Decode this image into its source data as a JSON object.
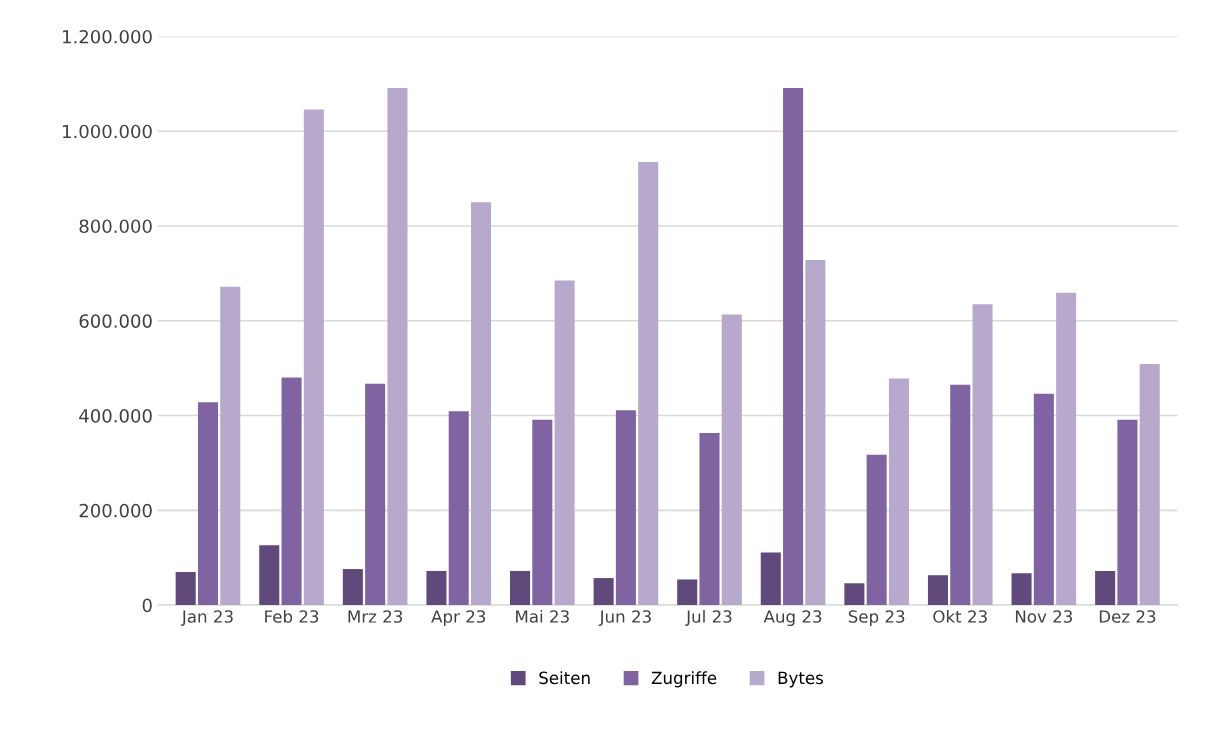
{
  "chart_data": {
    "type": "bar",
    "categories": [
      "Jan 23",
      "Feb 23",
      "Mrz 23",
      "Apr 23",
      "Mai 23",
      "Jun 23",
      "Jul 23",
      "Aug 23",
      "Sep 23",
      "Okt 23",
      "Nov 23",
      "Dez 23"
    ],
    "series": [
      {
        "name": "Seiten",
        "color": "#604a7b",
        "values": [
          70000,
          126000,
          76000,
          72000,
          72000,
          57000,
          54000,
          111000,
          46000,
          63000,
          67000,
          72000
        ]
      },
      {
        "name": "Zugriffe",
        "color": "#8064a2",
        "values": [
          428000,
          480000,
          467000,
          409000,
          391000,
          411000,
          363000,
          1091000,
          317000,
          465000,
          446000,
          391000
        ]
      },
      {
        "name": "Bytes",
        "color": "#b7a9cc",
        "values": [
          672000,
          1046000,
          1091000,
          850000,
          685000,
          935000,
          613000,
          728000,
          478000,
          635000,
          659000,
          509000
        ]
      }
    ],
    "ylim": [
      0,
      1200000
    ],
    "yticks": [
      {
        "value": 0,
        "label": "0"
      },
      {
        "value": 200000,
        "label": "200.000"
      },
      {
        "value": 400000,
        "label": "400.000"
      },
      {
        "value": 600000,
        "label": "600.000"
      },
      {
        "value": 800000,
        "label": "800.000"
      },
      {
        "value": 1000000,
        "label": "1.000.000"
      },
      {
        "value": 1200000,
        "label": "1.200.000"
      }
    ],
    "grid": "y",
    "legend": "bottom"
  }
}
